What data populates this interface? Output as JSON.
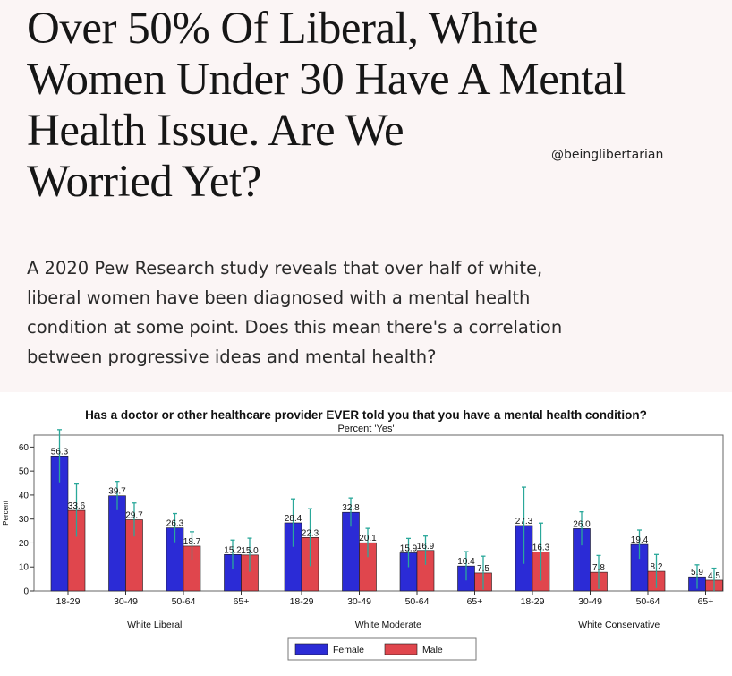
{
  "article": {
    "headline_lines": [
      "Over 50% Of Liberal, White",
      "Women Under 30 Have A Mental",
      "Health Issue. Are We",
      "Worried Yet?"
    ],
    "handle": "@beinglibertarian",
    "subhead_lines": [
      "A 2020 Pew Research study reveals that over half of white,",
      "liberal women have been diagnosed with a mental health",
      "condition at some point. Does this mean there's a correlation",
      "between progressive ideas and mental health?"
    ]
  },
  "chart_data": {
    "type": "bar",
    "title": "Has a doctor or other healthcare provider EVER told you that you have a mental health condition?",
    "subtitle": "Percent 'Yes'",
    "ylabel": "Percent",
    "ylim": [
      0,
      65
    ],
    "yticks": [
      0,
      10,
      20,
      30,
      40,
      50,
      60
    ],
    "age_groups": [
      "18-29",
      "30-49",
      "50-64",
      "65+"
    ],
    "groups": [
      "White Liberal",
      "White Moderate",
      "White Conservative"
    ],
    "series": [
      {
        "name": "Female",
        "color": "#2b2bd6",
        "values": [
          [
            56.3,
            39.7,
            26.3,
            15.2
          ],
          [
            28.4,
            32.8,
            15.9,
            10.4
          ],
          [
            27.3,
            26.0,
            19.4,
            5.9
          ]
        ],
        "labels": [
          [
            "56.3",
            "39.7",
            "26.3",
            "15.2"
          ],
          [
            "28.4",
            "32.8",
            "15.9",
            "10.4"
          ],
          [
            "27.3",
            "26.0",
            "19.4",
            "5.9"
          ]
        ]
      },
      {
        "name": "Male",
        "color": "#e0464d",
        "values": [
          [
            33.6,
            29.7,
            18.7,
            15.0
          ],
          [
            22.3,
            20.1,
            16.9,
            7.5
          ],
          [
            16.3,
            7.8,
            8.2,
            4.5
          ]
        ],
        "labels": [
          [
            "33.6",
            "29.7",
            "18.7",
            "15.0"
          ],
          [
            "22.3",
            "20.1",
            "16.9",
            "7.5"
          ],
          [
            "16.3",
            "7.8",
            "8.2",
            "4.5"
          ]
        ]
      }
    ],
    "error_bar_color": "#2aa89a",
    "legend_position": "bottom",
    "grid": false
  }
}
